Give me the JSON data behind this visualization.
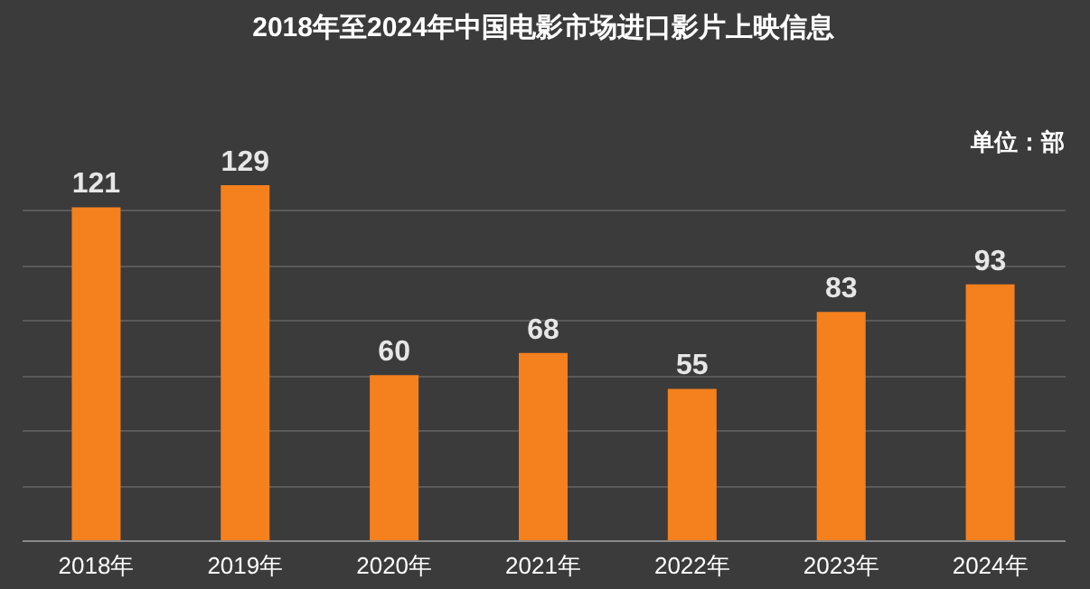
{
  "chart_data": {
    "type": "bar",
    "title": "2018年至2024年中国电影市场进口影片上映信息",
    "annotations": [
      "单位：部"
    ],
    "categories": [
      "2018年",
      "2019年",
      "2020年",
      "2021年",
      "2022年",
      "2023年",
      "2024年"
    ],
    "values": [
      121,
      129,
      60,
      68,
      55,
      83,
      93
    ],
    "color": "#f5801e",
    "data_labels": true,
    "tick_labels": "x",
    "grid": "y"
  }
}
